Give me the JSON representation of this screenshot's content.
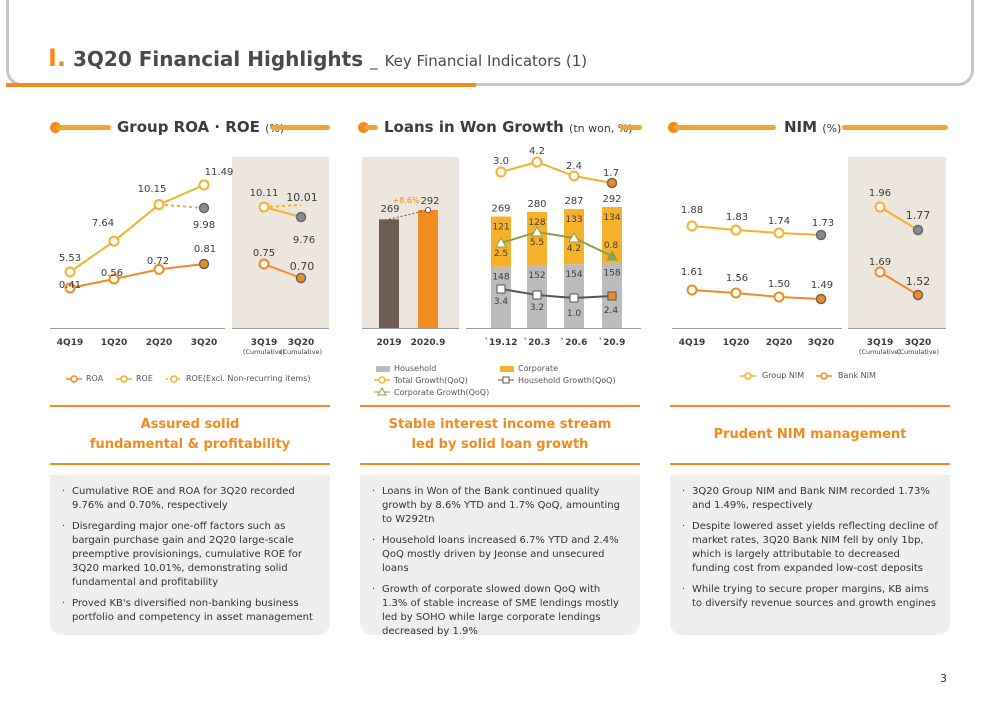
{
  "header": {
    "roman": "I.",
    "title": "3Q20 Financial Highlights",
    "separator": "_",
    "subtitle": "Key Financial Indicators (1)"
  },
  "colors": {
    "accent": "#f28b1f",
    "yellow": "#f5a52a",
    "gray_bar": "#bcbcbc",
    "brown_bar": "#6d5d52",
    "shade": "#ece6df"
  },
  "sections": {
    "roa": {
      "title": "Group ROA · ROE",
      "unit": "(%)"
    },
    "loans": {
      "title": "Loans in Won Growth",
      "unit": "(tn won, %)"
    },
    "nim": {
      "title": "NIM",
      "unit": "(%)"
    }
  },
  "chart_data": [
    {
      "type": "line",
      "id": "roa_roe_quarterly",
      "categories": [
        "4Q19",
        "1Q20",
        "2Q20",
        "3Q20"
      ],
      "series": [
        {
          "name": "ROE",
          "values": [
            5.53,
            7.64,
            10.15,
            11.49
          ],
          "labels": [
            "5.53",
            "7.64",
            "10.15",
            "11.49"
          ]
        },
        {
          "name": "ROE(Excl. Non-recurring items)",
          "values": [
            null,
            null,
            10.15,
            9.98
          ],
          "labels": [
            "",
            "",
            "",
            "9.98"
          ]
        },
        {
          "name": "ROA",
          "values": [
            0.41,
            0.56,
            0.72,
            0.81
          ],
          "labels": [
            "0.41",
            "0.56",
            "0.72",
            "0.81"
          ]
        }
      ]
    },
    {
      "type": "line",
      "id": "roa_roe_cumulative",
      "categories": [
        "3Q19",
        "3Q20"
      ],
      "category_notes": [
        "(Cumulative)",
        "(Cumulative)"
      ],
      "series": [
        {
          "name": "ROE",
          "values": [
            10.11,
            9.76
          ],
          "labels": [
            "10.11",
            "9.76"
          ]
        },
        {
          "name": "ROE(Excl. Non-recurring items)",
          "values": [
            10.11,
            10.01
          ],
          "labels": [
            "",
            "10.01"
          ]
        },
        {
          "name": "ROA",
          "values": [
            0.75,
            0.7
          ],
          "labels": [
            "0.75",
            "0.70"
          ]
        }
      ]
    },
    {
      "type": "bar",
      "id": "loans_annual",
      "categories": [
        "2019",
        "2020.9"
      ],
      "values": [
        269,
        292
      ],
      "labels": [
        "269",
        "292"
      ],
      "growth_label": "+8.6%"
    },
    {
      "type": "bar",
      "id": "loans_quarterly",
      "categories": [
        "`19.12",
        "`20.3",
        "`20.6",
        "`20.9"
      ],
      "totals": [
        "269",
        "280",
        "287",
        "292"
      ],
      "series": [
        {
          "name": "Household",
          "values": [
            148,
            152,
            154,
            158
          ]
        },
        {
          "name": "Corporate",
          "values": [
            121,
            128,
            133,
            134
          ]
        },
        {
          "name": "Total Growth(QoQ)",
          "values": [
            3.0,
            4.2,
            2.4,
            1.7
          ],
          "labels": [
            "3.0",
            "4.2",
            "2.4",
            "1.7"
          ]
        },
        {
          "name": "Corporate Growth(QoQ)",
          "values": [
            2.5,
            5.5,
            4.2,
            0.8
          ],
          "labels": [
            "2.5",
            "5.5",
            "4.2",
            "0.8"
          ]
        },
        {
          "name": "Household Growth(QoQ)",
          "values": [
            3.4,
            3.2,
            1.0,
            2.4
          ],
          "labels": [
            "3.4",
            "3.2",
            "1.0",
            "2.4"
          ]
        }
      ]
    },
    {
      "type": "line",
      "id": "nim_quarterly",
      "categories": [
        "4Q19",
        "1Q20",
        "2Q20",
        "3Q20"
      ],
      "series": [
        {
          "name": "Group NIM",
          "values": [
            1.88,
            1.83,
            1.74,
            1.73
          ],
          "labels": [
            "1.88",
            "1.83",
            "1.74",
            "1.73"
          ]
        },
        {
          "name": "Bank NIM",
          "values": [
            1.61,
            1.56,
            1.5,
            1.49
          ],
          "labels": [
            "1.61",
            "1.56",
            "1.50",
            "1.49"
          ]
        }
      ]
    },
    {
      "type": "line",
      "id": "nim_cumulative",
      "categories": [
        "3Q19",
        "3Q20"
      ],
      "category_notes": [
        "(Cumulative)",
        "(Cumulative)"
      ],
      "series": [
        {
          "name": "Group NIM",
          "values": [
            1.96,
            1.77
          ],
          "labels": [
            "1.96",
            "1.77"
          ]
        },
        {
          "name": "Bank NIM",
          "values": [
            1.69,
            1.52
          ],
          "labels": [
            "1.69",
            "1.52"
          ]
        }
      ]
    }
  ],
  "legends": {
    "roa": [
      "ROA",
      "ROE",
      "ROE(Excl. Non-recurring items)"
    ],
    "loans": [
      "Household",
      "Corporate",
      "Total Growth(QoQ)",
      "Household Growth(QoQ)",
      "Corporate Growth(QoQ)"
    ],
    "nim": [
      "Group NIM",
      "Bank NIM"
    ]
  },
  "summaries": {
    "roa": {
      "line1": "Assured solid",
      "line2": "fundamental & profitability"
    },
    "loans": {
      "line1": "Stable interest income stream",
      "line2": "led by solid loan growth"
    },
    "nim": {
      "line1": "Prudent NIM management",
      "line2": ""
    }
  },
  "bullets": {
    "roa": [
      "Cumulative ROE and ROA for 3Q20 recorded 9.76% and 0.70%, respectively",
      "Disregarding major one-off factors such as bargain purchase gain and 2Q20 large-scale preemptive provisionings, cumulative ROE for 3Q20 marked 10.01%, demonstrating solid fundamental and profitability",
      "Proved KB's diversified non-banking business portfolio and competency in asset management"
    ],
    "loans": [
      "Loans in Won of the Bank continued quality growth by 8.6% YTD and 1.7% QoQ, amounting to W292tn",
      "Household loans increased 6.7% YTD and 2.4% QoQ mostly driven by Jeonse and unsecured loans",
      "Growth of corporate slowed down QoQ with 1.3% of stable increase of SME lendings mostly led by SOHO while large corporate lendings decreased by 1.9%"
    ],
    "nim": [
      "3Q20 Group NIM and Bank NIM recorded 1.73% and 1.49%, respectively",
      "Despite lowered asset yields reflecting decline of market rates, 3Q20 Bank NIM fell by only 1bp, which is largely attributable to decreased funding cost from expanded low-cost deposits",
      "While trying to secure proper margins, KB aims to diversify revenue sources and growth engines"
    ]
  },
  "page_number": "3"
}
